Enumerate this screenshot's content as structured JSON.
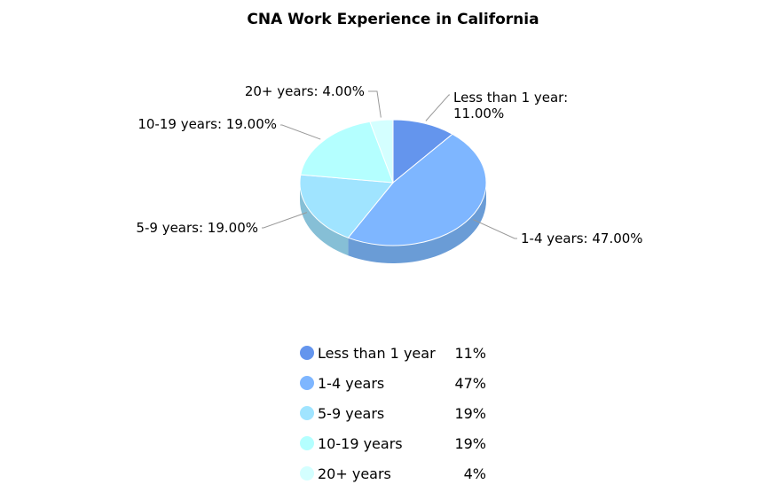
{
  "chart_data": {
    "type": "pie",
    "title": "CNA Work Experience in California",
    "slices": [
      {
        "name": "Less than 1 year",
        "value": 11,
        "label": "Less than 1 year: 11.00%",
        "legend_value": "11%",
        "color": "#6495ED",
        "side_color": "#5078C0"
      },
      {
        "name": "1-4 years",
        "value": 47,
        "label": "1-4 years: 47.00%",
        "legend_value": "47%",
        "color": "#7EB6FF",
        "side_color": "#6A9CD6"
      },
      {
        "name": "5-9 years",
        "value": 19,
        "label": "5-9 years: 19.00%",
        "legend_value": "19%",
        "color": "#A0E4FF",
        "side_color": "#86BFD6"
      },
      {
        "name": "10-19 years",
        "value": 19,
        "label": "10-19 years: 19.00%",
        "legend_value": "19%",
        "color": "#B4FFFF",
        "side_color": "#98D6D6"
      },
      {
        "name": "20+ years",
        "value": 4,
        "label": "20+ years: 4.00%",
        "legend_value": "4%",
        "color": "#D4FFFF",
        "side_color": "#B3D6D6"
      }
    ],
    "legend_placement": "bottom"
  }
}
